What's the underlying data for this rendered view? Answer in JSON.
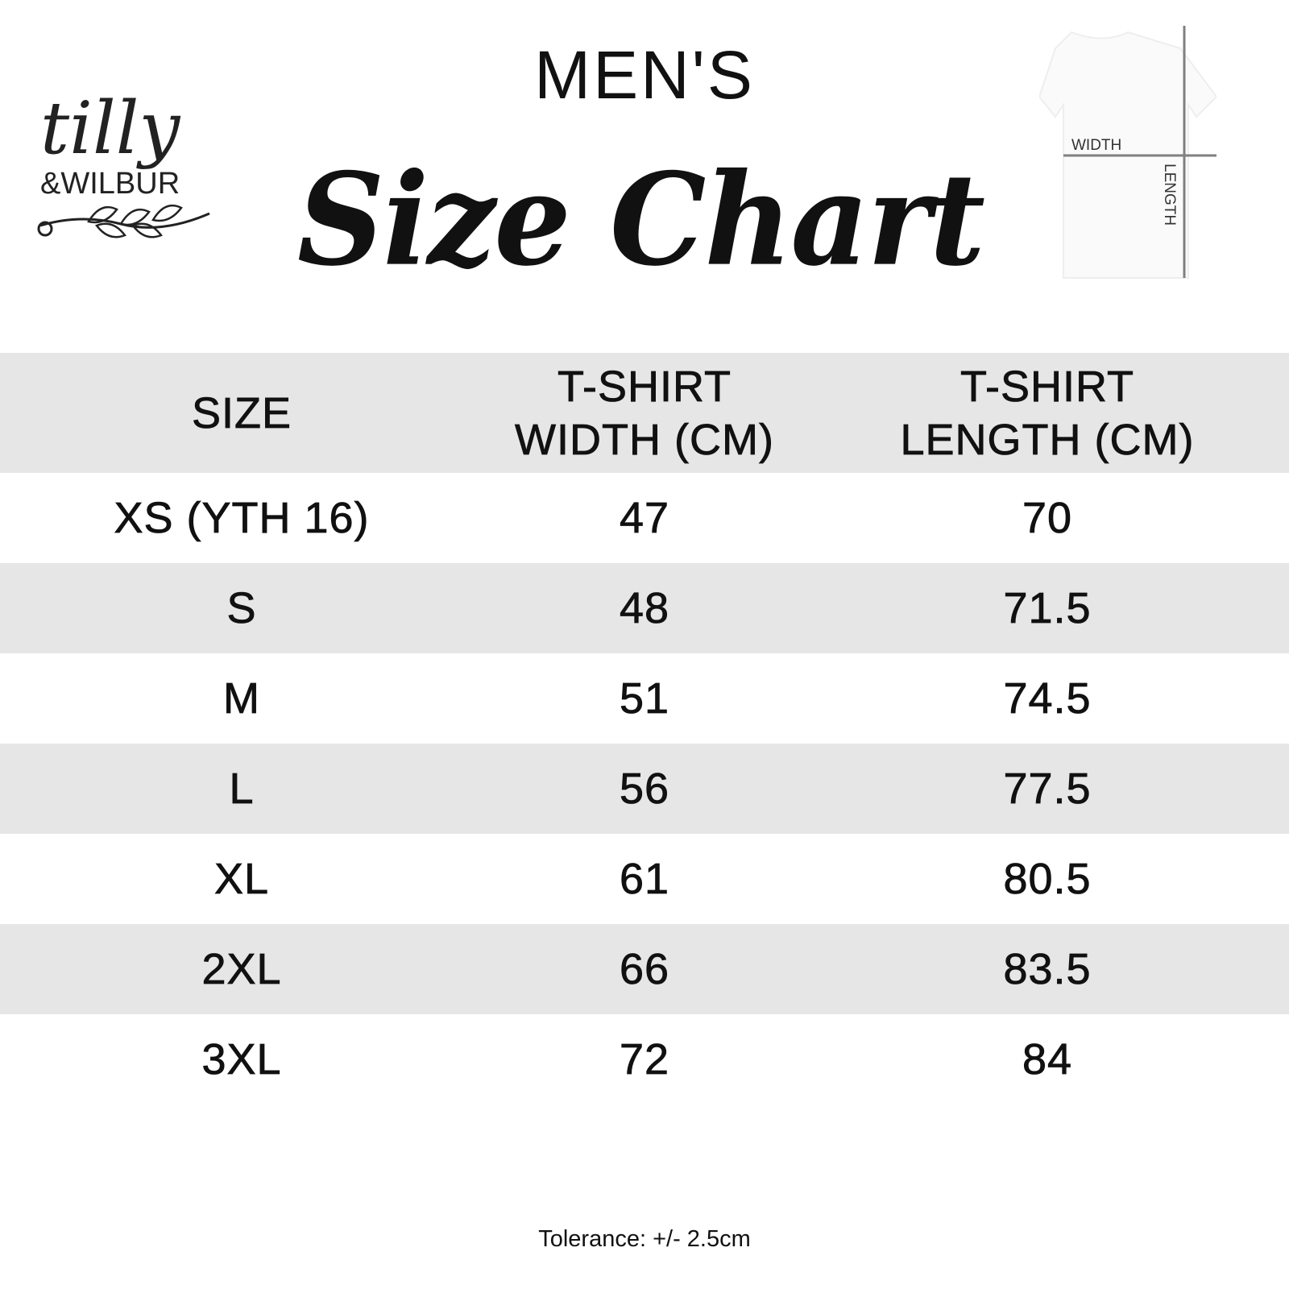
{
  "logo": {
    "brand": "tilly & WILBUR"
  },
  "header": {
    "subtitle": "MEN'S",
    "title": "Size Chart"
  },
  "diagram": {
    "width_label": "WIDTH",
    "length_label": "LENGTH"
  },
  "table": {
    "columns": [
      "SIZE",
      "T-SHIRT WIDTH (CM)",
      "T-SHIRT LENGTH (CM)"
    ],
    "rows": [
      [
        "XS (YTH 16)",
        "47",
        "70"
      ],
      [
        "S",
        "48",
        "71.5"
      ],
      [
        "M",
        "51",
        "74.5"
      ],
      [
        "L",
        "56",
        "77.5"
      ],
      [
        "XL",
        "61",
        "80.5"
      ],
      [
        "2XL",
        "66",
        "83.5"
      ],
      [
        "3XL",
        "72",
        "84"
      ]
    ]
  },
  "footer": {
    "tolerance": "Tolerance: +/- 2.5cm"
  },
  "colors": {
    "row_shade": "#e6e6e6",
    "text": "#111111",
    "guide_lines": "#808080"
  }
}
